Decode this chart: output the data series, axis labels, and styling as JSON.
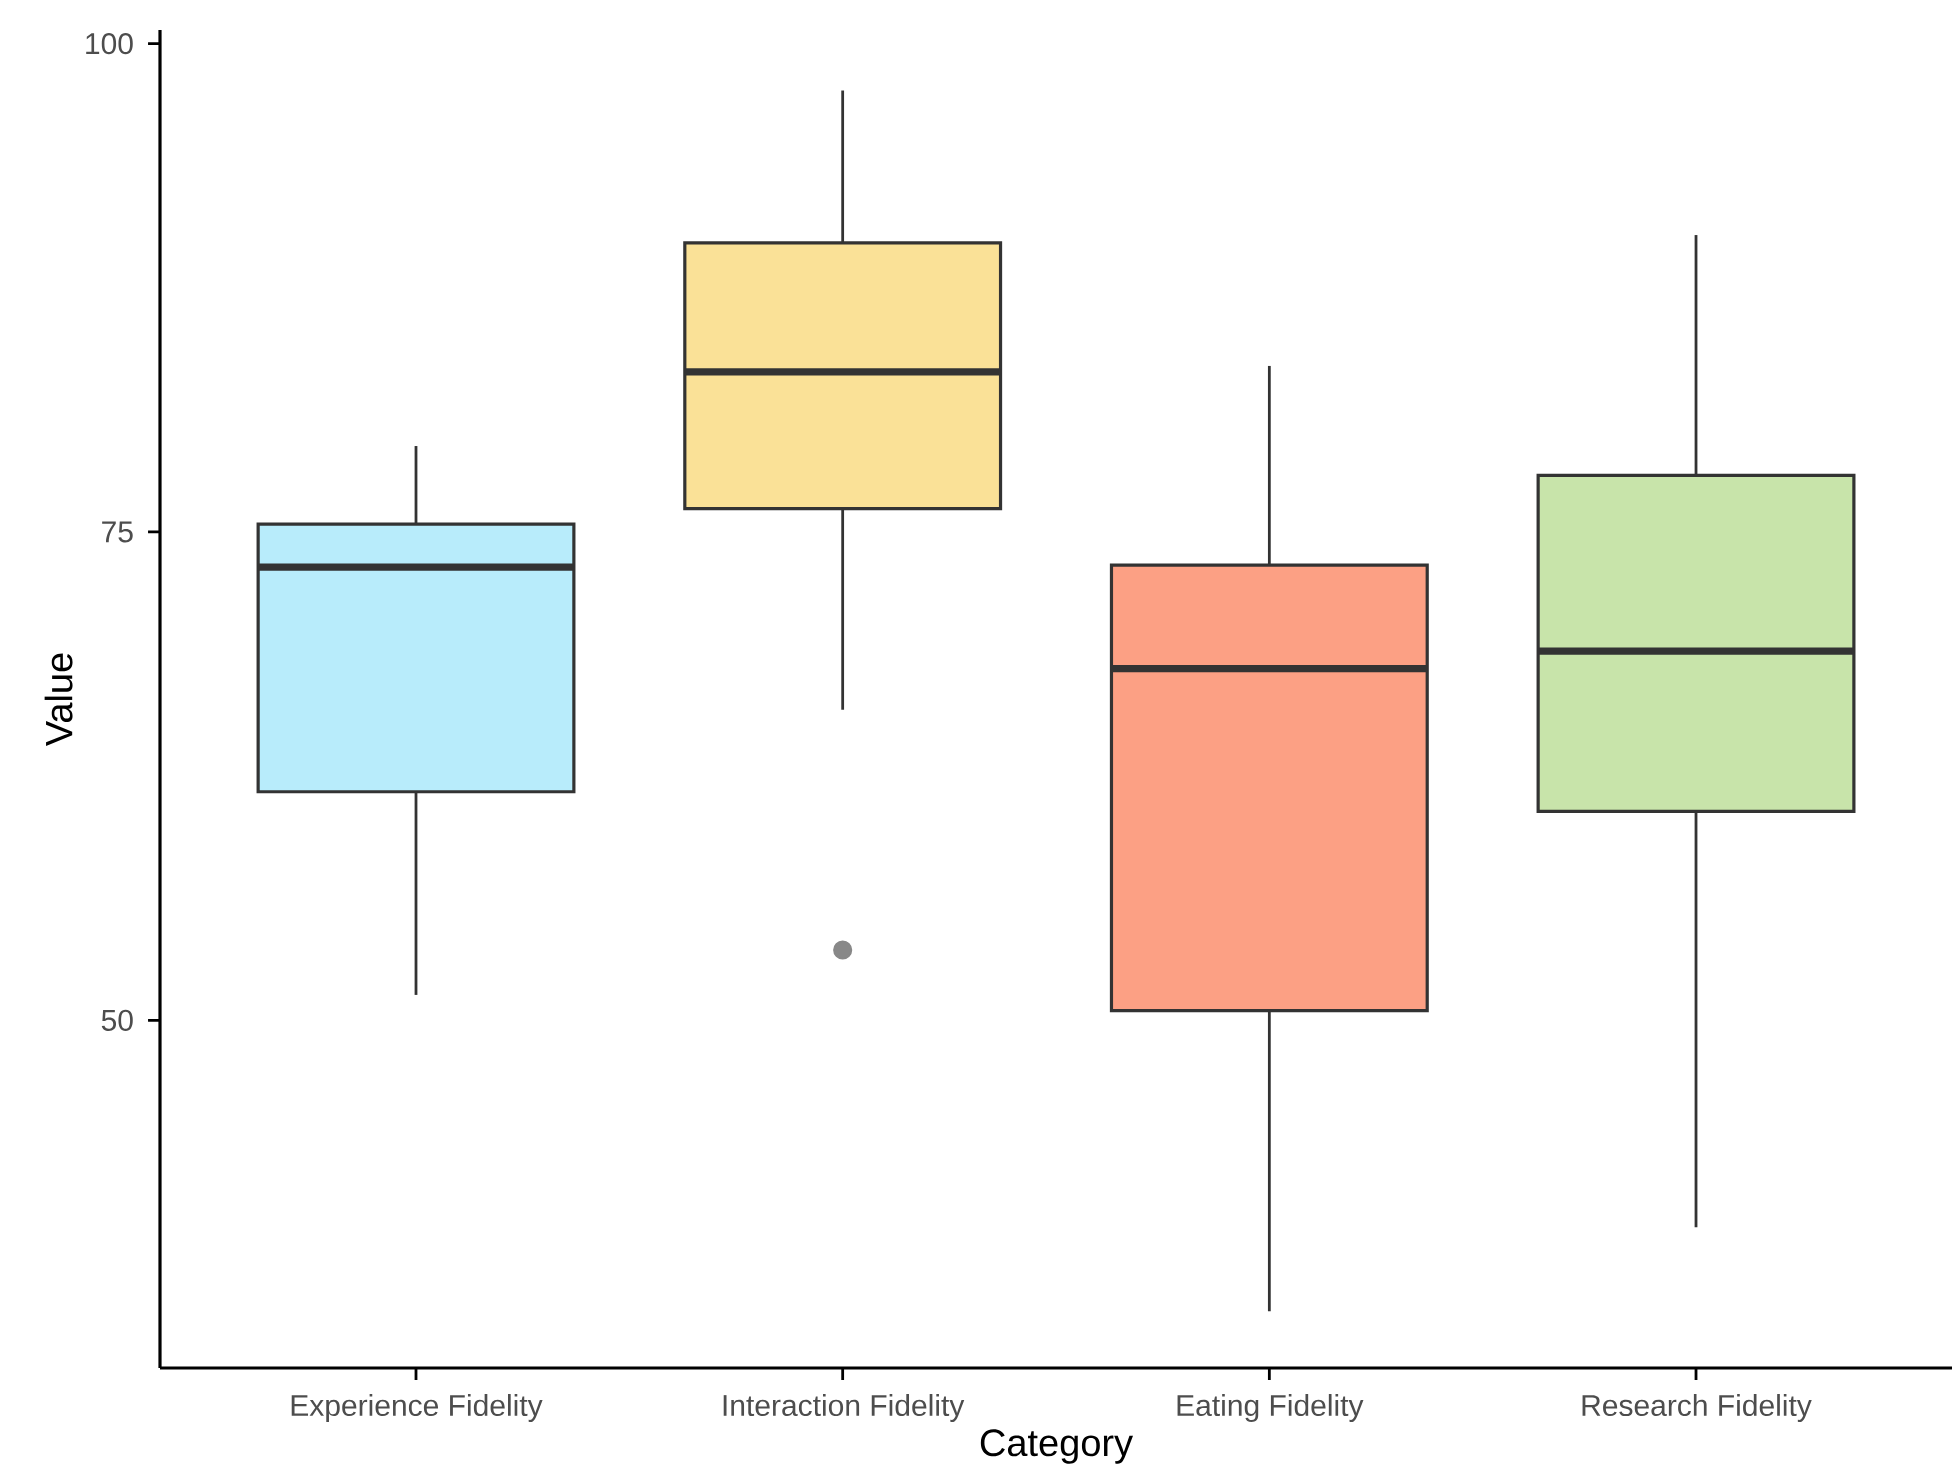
{
  "chart_data": {
    "type": "box",
    "xlabel": "Category",
    "ylabel": "Value",
    "categories": [
      "Experience Fidelity",
      "Interaction Fidelity",
      "Eating Fidelity",
      "Research Fidelity"
    ],
    "colors": [
      "#b8ecfb",
      "#fae197",
      "#fca084",
      "#c8e4aa"
    ],
    "boxes": [
      {
        "low": 51.3,
        "q1": 61.7,
        "median": 73.2,
        "q3": 75.4,
        "high": 79.4
      },
      {
        "low": 65.9,
        "q1": 76.2,
        "median": 83.2,
        "q3": 89.8,
        "high": 97.6,
        "outliers": [
          53.6
        ]
      },
      {
        "low": 35.1,
        "q1": 50.5,
        "median": 68.0,
        "q3": 73.3,
        "high": 83.5
      },
      {
        "low": 39.4,
        "q1": 60.7,
        "median": 68.9,
        "q3": 77.9,
        "high": 90.2
      }
    ],
    "ylim": [
      32.2,
      100.7
    ],
    "yticks": [
      50,
      75,
      100
    ]
  }
}
